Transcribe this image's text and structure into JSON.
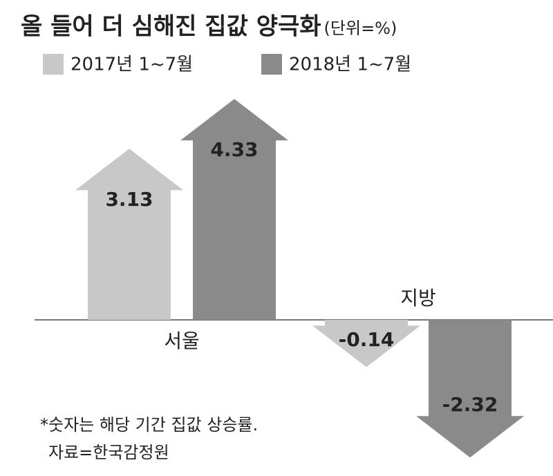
{
  "chart_data": {
    "type": "bar",
    "title": "올 들어 더 심해진 집값 양극화",
    "subtitle": "(단위=%)",
    "categories": [
      "서울",
      "지방"
    ],
    "series": [
      {
        "name": "2017년 1~7월",
        "color": "#c8c8c8",
        "values": [
          3.13,
          -0.14
        ]
      },
      {
        "name": "2018년 1~7월",
        "color": "#8a8a8a",
        "values": [
          4.33,
          -2.32
        ]
      }
    ],
    "notes": [
      "*숫자는 해당 기간 집값 상승률.",
      "자료=한국감정원"
    ]
  }
}
